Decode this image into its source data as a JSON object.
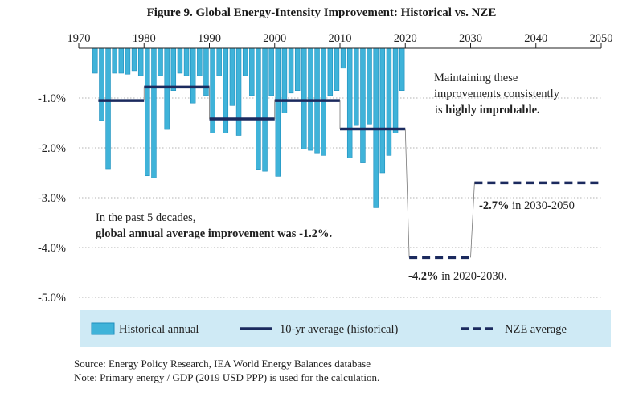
{
  "title": "Figure 9. Global Energy-Intensity Improvement: Historical vs. NZE",
  "chart_data": {
    "type": "bar",
    "x_ticks": [
      "1970",
      "1980",
      "1990",
      "2000",
      "2010",
      "2020",
      "2030",
      "2040",
      "2050"
    ],
    "x_range": [
      1970,
      2050
    ],
    "y_ticks": [
      "-1.0%",
      "-2.0%",
      "-3.0%",
      "-4.0%",
      "-5.0%"
    ],
    "y_range": [
      0,
      -5.0
    ],
    "series": [
      {
        "name": "Historical annual",
        "years": [
          1972,
          1973,
          1974,
          1975,
          1976,
          1977,
          1978,
          1979,
          1980,
          1981,
          1982,
          1983,
          1984,
          1985,
          1986,
          1987,
          1988,
          1989,
          1990,
          1991,
          1992,
          1993,
          1994,
          1995,
          1996,
          1997,
          1998,
          1999,
          2000,
          2001,
          2002,
          2003,
          2004,
          2005,
          2006,
          2007,
          2008,
          2009,
          2010,
          2011,
          2012,
          2013,
          2014,
          2015,
          2016,
          2017,
          2018,
          2019
        ],
        "values": [
          -0.5,
          -1.45,
          -2.42,
          -0.5,
          -0.5,
          -0.52,
          -0.45,
          -0.55,
          -2.56,
          -2.6,
          -0.55,
          -1.63,
          -0.85,
          -0.5,
          -0.55,
          -1.1,
          -0.55,
          -0.95,
          -1.7,
          -0.55,
          -1.7,
          -1.15,
          -1.75,
          -0.55,
          -0.95,
          -2.43,
          -2.47,
          -0.95,
          -2.57,
          -1.3,
          -0.9,
          -0.85,
          -2.02,
          -2.05,
          -2.1,
          -2.15,
          -0.95,
          -0.85,
          -0.4,
          -2.2,
          -1.55,
          -2.3,
          -1.52,
          -3.2,
          -2.5,
          -2.15,
          -1.7,
          -0.85
        ]
      },
      {
        "name": "10-yr average (historical)",
        "segments": [
          {
            "start": 1973,
            "end": 1980,
            "value": -1.05
          },
          {
            "start": 1980,
            "end": 1990,
            "value": -0.78
          },
          {
            "start": 1990,
            "end": 2000,
            "value": -1.42
          },
          {
            "start": 2000,
            "end": 2010,
            "value": -1.05
          },
          {
            "start": 2010,
            "end": 2020,
            "value": -1.62
          }
        ]
      },
      {
        "name": "NZE average",
        "segments": [
          {
            "start": 2020,
            "end": 2030,
            "value": -4.2
          },
          {
            "start": 2030,
            "end": 2050,
            "value": -2.7
          }
        ]
      }
    ],
    "annotations": {
      "top_right": {
        "line1": "Maintaining these",
        "line2": "improvements consistently",
        "line3_pre": "is ",
        "line3_bold": "highly improbable."
      },
      "left": {
        "line1": "In the past 5 decades,",
        "line2": "global annual average improvement was -1.2%."
      },
      "nze2030": {
        "bold": "-4.2%",
        "rest": " in 2020-2030."
      },
      "nze2050": {
        "bold": "-2.7%",
        "rest": " in 2030-2050"
      }
    },
    "legend": [
      "Historical annual",
      "10-yr average (historical)",
      "NZE average"
    ],
    "colors": {
      "bar_fill": "#3fb3d9",
      "bar_stroke": "#1f8fbd",
      "avg_line": "#1b2a5e",
      "legend_bg": "#cfeaf5",
      "grid": "#9a9a9a"
    }
  },
  "source": {
    "line1": "Source: Energy Policy Research, IEA World Energy Balances database",
    "line2": "Note: Primary energy / GDP (2019 USD PPP) is used for the calculation."
  }
}
